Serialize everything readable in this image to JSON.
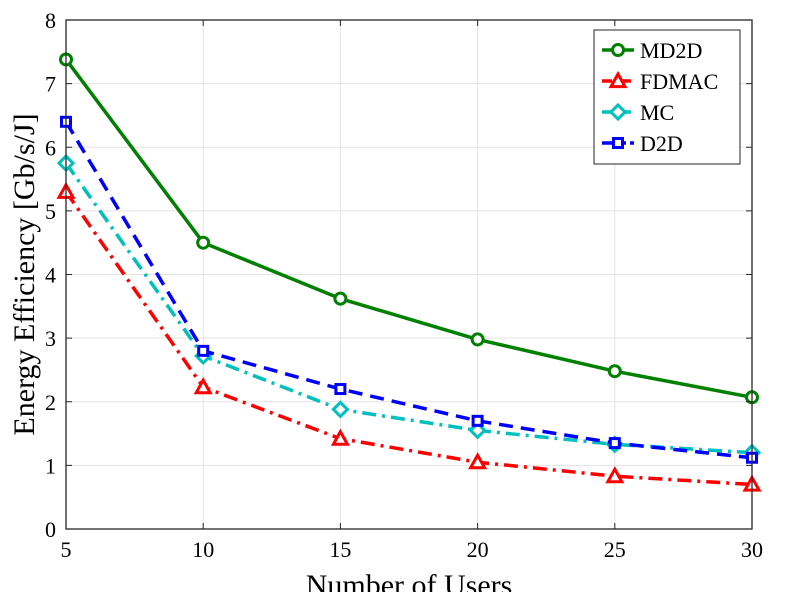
{
  "chart_data": {
    "type": "line",
    "title": "",
    "xlabel": "Number of Users",
    "ylabel": "Energy Efficiency [Gb/s/J]",
    "xlim": [
      5,
      30
    ],
    "ylim": [
      0,
      8
    ],
    "xticks": [
      5,
      10,
      15,
      20,
      25,
      30
    ],
    "yticks": [
      0,
      1,
      2,
      3,
      4,
      5,
      6,
      7,
      8
    ],
    "grid": true,
    "legend_position": "top-right",
    "x": [
      5,
      10,
      15,
      20,
      25,
      30
    ],
    "series": [
      {
        "name": "MD2D",
        "values": [
          7.38,
          4.5,
          3.62,
          2.98,
          2.48,
          2.07
        ],
        "color": "#008000",
        "line_style": "solid",
        "marker": "circle"
      },
      {
        "name": "FDMAC",
        "values": [
          5.3,
          2.23,
          1.42,
          1.05,
          0.83,
          0.7
        ],
        "color": "#ff0000",
        "line_style": "dashdot",
        "marker": "triangle"
      },
      {
        "name": "MC",
        "values": [
          5.75,
          2.72,
          1.88,
          1.55,
          1.33,
          1.2
        ],
        "color": "#00bfbf",
        "line_style": "dashdot",
        "marker": "diamond"
      },
      {
        "name": "D2D",
        "values": [
          6.4,
          2.8,
          2.2,
          1.7,
          1.35,
          1.12
        ],
        "color": "#0000ff",
        "line_style": "dashed",
        "marker": "square"
      }
    ]
  }
}
